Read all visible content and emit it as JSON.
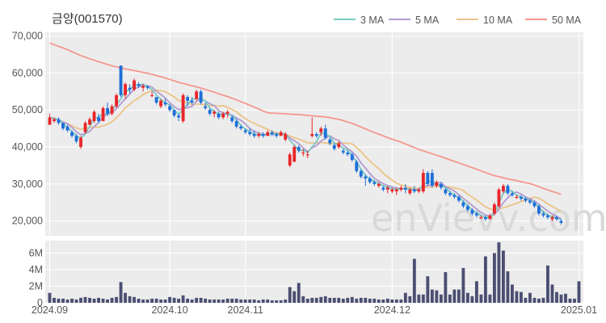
{
  "chart_data": {
    "type": "candlestick",
    "title": "금양(001570)",
    "watermark": "enVievv.com",
    "legend": [
      {
        "label": "3 MA",
        "color": "#78c9c5"
      },
      {
        "label": "5 MA",
        "color": "#b39bd1"
      },
      {
        "label": "10 MA",
        "color": "#ecc387"
      },
      {
        "label": "50 MA",
        "color": "#f4978e"
      }
    ],
    "legend_position": "top-right",
    "colors": {
      "up": "#e8262a",
      "down": "#1e6fd9",
      "volume": "#4a4f72",
      "grid": "#ffffff",
      "plot_bg": "#ececec"
    },
    "price_axis": {
      "ticks": [
        20000,
        30000,
        40000,
        50000,
        60000,
        70000
      ],
      "tick_labels": [
        "20,000",
        "30,000",
        "40,000",
        "50,000",
        "60,000",
        "70,000"
      ],
      "ylim": [
        16000,
        71000
      ]
    },
    "volume_axis": {
      "ticks": [
        0,
        2,
        4,
        6
      ],
      "tick_labels": [
        "0",
        "2M",
        "4M",
        "6M"
      ],
      "ylim": [
        0,
        7.5
      ],
      "unit": "M"
    },
    "x_axis": {
      "ticks": [
        0,
        27,
        44,
        77,
        119
      ],
      "tick_labels": [
        "2024.09",
        "2024.10",
        "2024.11",
        "2024.12",
        "2025.01"
      ]
    },
    "x_range": [
      -1,
      120
    ],
    "ohlc": [
      [
        46000,
        49000,
        46000,
        48000
      ],
      [
        47000,
        48000,
        46500,
        47500
      ],
      [
        47500,
        48000,
        46000,
        46500
      ],
      [
        46500,
        46500,
        44500,
        45000
      ],
      [
        45500,
        46000,
        44000,
        44500
      ],
      [
        44000,
        44500,
        42500,
        43000
      ],
      [
        43000,
        43500,
        41000,
        41500
      ],
      [
        40000,
        43000,
        39500,
        42500
      ],
      [
        44000,
        47000,
        43500,
        46500
      ],
      [
        46000,
        48000,
        46000,
        47500
      ],
      [
        47000,
        50000,
        46500,
        49500
      ],
      [
        48000,
        49000,
        46500,
        47000
      ],
      [
        47000,
        51000,
        47000,
        50500
      ],
      [
        50500,
        52000,
        48500,
        49000
      ],
      [
        49000,
        51500,
        48500,
        51000
      ],
      [
        51000,
        54500,
        50500,
        54000
      ],
      [
        62000,
        62000,
        53500,
        54000
      ],
      [
        54000,
        57500,
        53000,
        57000
      ],
      [
        56000,
        57000,
        54500,
        55500
      ],
      [
        55500,
        58500,
        55000,
        58000
      ],
      [
        57000,
        57500,
        56000,
        56500
      ],
      [
        56000,
        57000,
        55000,
        56500
      ],
      [
        56500,
        56500,
        55500,
        56000
      ],
      [
        54000,
        55000,
        53500,
        54000
      ],
      [
        53500,
        53500,
        51500,
        52000
      ],
      [
        51000,
        53000,
        50500,
        52500
      ],
      [
        52000,
        53000,
        51000,
        51500
      ],
      [
        51000,
        51500,
        49500,
        50000
      ],
      [
        50000,
        50000,
        48000,
        48500
      ],
      [
        48500,
        49000,
        47000,
        48000
      ],
      [
        47000,
        54500,
        46500,
        54000
      ],
      [
        53500,
        54000,
        51000,
        52500
      ],
      [
        52500,
        53500,
        51500,
        52000
      ],
      [
        53000,
        55500,
        52500,
        55000
      ],
      [
        55000,
        55500,
        51500,
        52000
      ],
      [
        51000,
        52000,
        50000,
        50500
      ],
      [
        50000,
        50500,
        48500,
        49000
      ],
      [
        49000,
        50000,
        48000,
        49500
      ],
      [
        49000,
        49500,
        47500,
        48000
      ],
      [
        48000,
        49500,
        47500,
        49000
      ],
      [
        49000,
        50000,
        48000,
        49500
      ],
      [
        48000,
        48500,
        46500,
        47000
      ],
      [
        47000,
        47500,
        45000,
        45500
      ],
      [
        45500,
        46000,
        44500,
        45000
      ],
      [
        44500,
        45000,
        43500,
        44000
      ],
      [
        44000,
        45000,
        43000,
        43500
      ],
      [
        43500,
        44500,
        42500,
        43000
      ],
      [
        43000,
        44000,
        42500,
        43500
      ],
      [
        43500,
        44000,
        42500,
        43000
      ],
      [
        43000,
        44500,
        43000,
        44000
      ],
      [
        44000,
        44500,
        43000,
        43500
      ],
      [
        43500,
        44000,
        42500,
        43000
      ],
      [
        43000,
        44500,
        43000,
        44000
      ],
      [
        42000,
        44000,
        41500,
        43500
      ],
      [
        35000,
        38500,
        34500,
        38000
      ],
      [
        36000,
        40500,
        36000,
        40000
      ],
      [
        40000,
        40500,
        38500,
        39000
      ],
      [
        38500,
        39500,
        37500,
        38500
      ],
      [
        38000,
        39000,
        37000,
        38000
      ],
      [
        43000,
        48000,
        42500,
        43500
      ],
      [
        43500,
        44000,
        42500,
        43000
      ],
      [
        44000,
        45500,
        43000,
        45000
      ],
      [
        45000,
        46000,
        42000,
        42500
      ],
      [
        42000,
        42500,
        40500,
        41000
      ],
      [
        40500,
        41000,
        39000,
        39500
      ],
      [
        40000,
        41500,
        39500,
        41000
      ],
      [
        39000,
        39500,
        38000,
        38500
      ],
      [
        38500,
        39000,
        37500,
        38000
      ],
      [
        38000,
        38500,
        36000,
        36500
      ],
      [
        36000,
        36500,
        33000,
        33500
      ],
      [
        33500,
        34000,
        31500,
        32000
      ],
      [
        32000,
        32500,
        29500,
        31500
      ],
      [
        31500,
        32000,
        30000,
        30500
      ],
      [
        30500,
        31000,
        29500,
        30000
      ],
      [
        29500,
        30500,
        29000,
        30000
      ],
      [
        29000,
        29500,
        28000,
        28500
      ],
      [
        28500,
        29500,
        27500,
        29000
      ],
      [
        28000,
        29000,
        27500,
        28500
      ],
      [
        28000,
        29000,
        27000,
        28500
      ],
      [
        28500,
        29500,
        28000,
        29000
      ],
      [
        29000,
        30000,
        27500,
        28500
      ],
      [
        27500,
        29000,
        27000,
        28500
      ],
      [
        28500,
        29500,
        27500,
        28000
      ],
      [
        28000,
        29000,
        27500,
        28500
      ],
      [
        28000,
        34000,
        27500,
        33000
      ],
      [
        33000,
        33500,
        29500,
        30000
      ],
      [
        33000,
        34000,
        29000,
        29500
      ],
      [
        29500,
        31000,
        29000,
        30500
      ],
      [
        30000,
        30500,
        28500,
        29000
      ],
      [
        28500,
        29000,
        27000,
        27500
      ],
      [
        27500,
        28000,
        26500,
        27000
      ],
      [
        27000,
        27500,
        26000,
        26500
      ],
      [
        26500,
        27000,
        25000,
        25500
      ],
      [
        25000,
        25500,
        23500,
        24000
      ],
      [
        24000,
        24500,
        22500,
        23000
      ],
      [
        23000,
        23500,
        21500,
        22000
      ],
      [
        22000,
        22500,
        21000,
        21500
      ],
      [
        21000,
        21500,
        20500,
        21000
      ],
      [
        21000,
        21500,
        20000,
        20500
      ],
      [
        20500,
        22000,
        20500,
        21500
      ],
      [
        22000,
        25000,
        21500,
        24500
      ],
      [
        24000,
        29000,
        23500,
        28500
      ],
      [
        28000,
        30000,
        27500,
        29500
      ],
      [
        29500,
        30000,
        27000,
        27500
      ],
      [
        27500,
        28000,
        26500,
        27000
      ],
      [
        26500,
        27000,
        26000,
        26500
      ],
      [
        26500,
        27000,
        25500,
        26000
      ],
      [
        26000,
        26500,
        25000,
        25500
      ],
      [
        25500,
        26000,
        24500,
        25000
      ],
      [
        25000,
        25500,
        23500,
        24000
      ],
      [
        24000,
        24500,
        21500,
        22000
      ],
      [
        22000,
        22500,
        21000,
        21500
      ],
      [
        21500,
        22000,
        20500,
        21000
      ],
      [
        20500,
        21500,
        20000,
        21000
      ],
      [
        21000,
        21500,
        20000,
        20500
      ],
      [
        20000,
        20500,
        19000,
        19500
      ]
    ],
    "volume_millions": [
      1.2,
      0.6,
      0.5,
      0.5,
      0.4,
      0.5,
      0.4,
      0.6,
      0.7,
      0.6,
      0.5,
      0.6,
      0.5,
      0.4,
      0.6,
      0.7,
      2.5,
      1.2,
      0.8,
      0.7,
      0.5,
      0.4,
      0.4,
      0.5,
      0.5,
      0.4,
      0.4,
      0.7,
      0.6,
      0.5,
      0.9,
      0.5,
      0.4,
      0.6,
      0.6,
      0.5,
      0.4,
      0.4,
      0.4,
      0.4,
      0.5,
      0.5,
      0.5,
      0.4,
      0.4,
      0.4,
      0.4,
      0.3,
      0.4,
      0.4,
      0.3,
      0.3,
      0.3,
      0.4,
      1.9,
      1.4,
      2.4,
      0.8,
      0.5,
      0.6,
      0.6,
      0.7,
      0.8,
      0.6,
      0.6,
      0.6,
      0.5,
      0.6,
      0.7,
      0.5,
      0.6,
      0.6,
      0.5,
      0.5,
      0.4,
      0.4,
      0.5,
      0.4,
      0.4,
      0.4,
      1.2,
      0.8,
      5.3,
      1.0,
      1.0,
      3.2,
      1.6,
      1.5,
      1.0,
      3.7,
      1.0,
      1.6,
      1.6,
      4.2,
      1.2,
      0.8,
      2.6,
      1.0,
      5.6,
      1.0,
      6.0,
      7.3,
      6.3,
      3.8,
      2.2,
      1.4,
      1.3,
      0.6,
      1.2,
      0.6,
      0.5,
      0.6,
      4.5,
      2.2,
      1.3,
      1.0,
      1.1,
      0.5,
      0.5,
      2.6
    ],
    "sma50_start": 68500
  }
}
